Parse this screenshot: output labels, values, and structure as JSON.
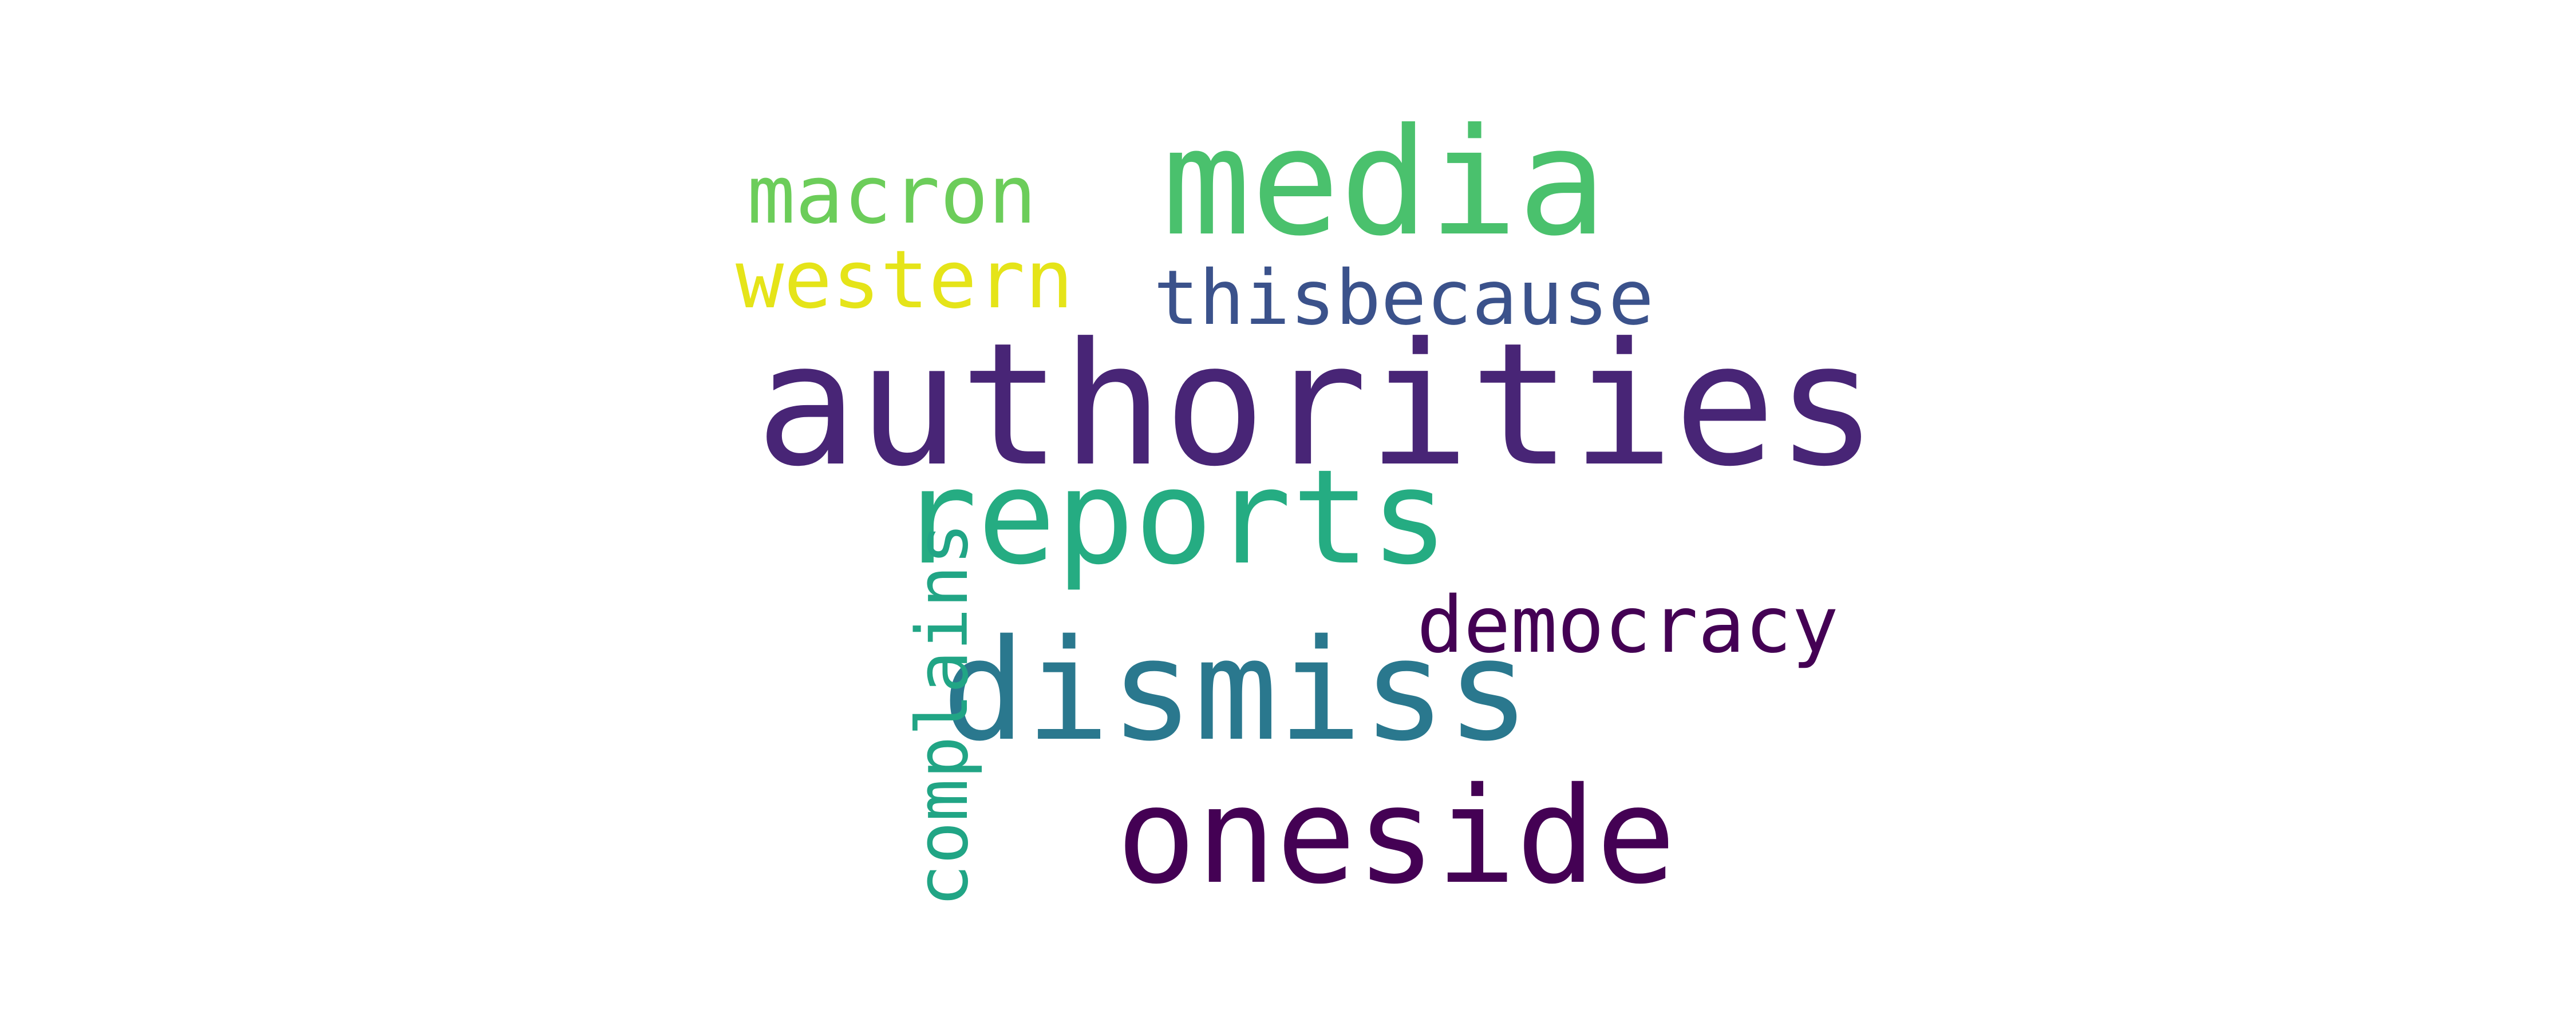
{
  "words": {
    "authorities": {
      "text": "authorities",
      "color": "#482576"
    },
    "media": {
      "text": "media",
      "color": "#4ac16d"
    },
    "reports": {
      "text": "reports",
      "color": "#25ac82"
    },
    "dismiss": {
      "text": "dismiss",
      "color": "#2a788e"
    },
    "oneside": {
      "text": "oneside",
      "color": "#440154"
    },
    "macron": {
      "text": "macron",
      "color": "#6ccd5a"
    },
    "western": {
      "text": "western",
      "color": "#e5e419"
    },
    "thisbecause": {
      "text": "thisbecause",
      "color": "#3b528b"
    },
    "democracy": {
      "text": "democracy",
      "color": "#440154"
    },
    "complains": {
      "text": "complains",
      "color": "#21a585"
    }
  }
}
